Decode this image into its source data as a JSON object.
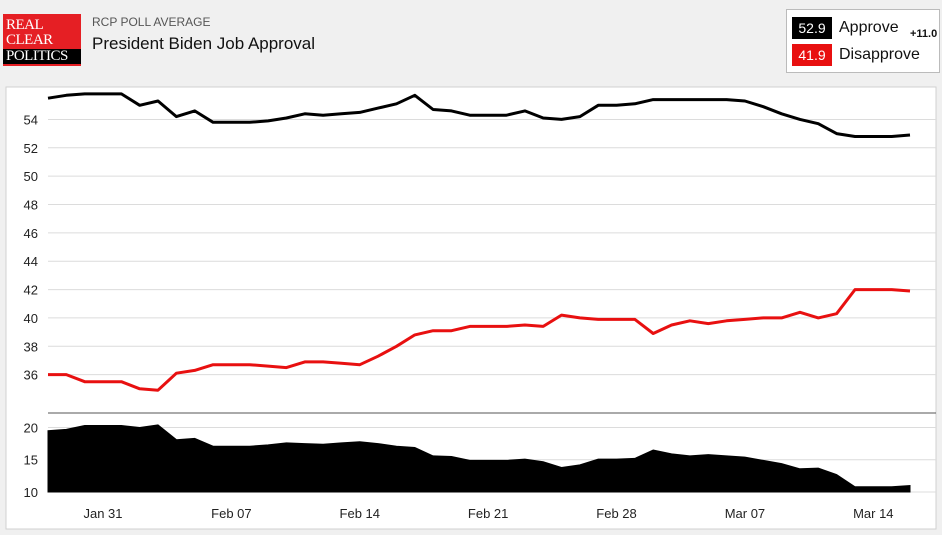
{
  "header": {
    "logo": {
      "line1": "REAL",
      "line2": "CLEAR",
      "line3": "POLITICS"
    },
    "kicker": "RCP POLL AVERAGE",
    "title": "President Biden Job Approval"
  },
  "legend": {
    "approve": {
      "value": "52.9",
      "label": "Approve",
      "color": "#000000"
    },
    "disapprove": {
      "value": "41.9",
      "label": "Disapprove",
      "color": "#e81010"
    },
    "spread": "+11.0"
  },
  "chart_data": [
    {
      "type": "line",
      "ylim": [
        34,
        56.5
      ],
      "yticks": [
        36,
        38,
        40,
        42,
        44,
        46,
        48,
        50,
        52,
        54
      ],
      "grid": true,
      "series": [
        {
          "name": "Approve",
          "color": "#000000",
          "values": [
            55.5,
            55.7,
            55.8,
            55.8,
            55.8,
            55.0,
            55.3,
            54.2,
            54.6,
            53.8,
            53.8,
            53.8,
            53.9,
            54.1,
            54.4,
            54.3,
            54.4,
            54.5,
            54.8,
            55.1,
            55.7,
            54.7,
            54.6,
            54.3,
            54.3,
            54.3,
            54.6,
            54.1,
            54.0,
            54.2,
            55.0,
            55.0,
            55.1,
            55.4,
            55.4,
            55.4,
            55.4,
            55.4,
            55.3,
            54.9,
            54.4,
            54.0,
            53.7,
            53.0,
            52.8,
            52.8,
            52.8,
            52.9
          ]
        },
        {
          "name": "Disapprove",
          "color": "#e81010",
          "values": [
            36.0,
            36.0,
            35.5,
            35.5,
            35.5,
            35.0,
            34.9,
            36.1,
            36.3,
            36.7,
            36.7,
            36.7,
            36.6,
            36.5,
            36.9,
            36.9,
            36.8,
            36.7,
            37.3,
            38.0,
            38.8,
            39.1,
            39.1,
            39.4,
            39.4,
            39.4,
            39.5,
            39.4,
            40.2,
            40.0,
            39.9,
            39.9,
            39.9,
            38.9,
            39.5,
            39.8,
            39.6,
            39.8,
            39.9,
            40.0,
            40.0,
            40.4,
            40.0,
            40.3,
            42.0,
            42.0,
            42.0,
            41.9
          ]
        }
      ]
    },
    {
      "type": "area",
      "ylim": [
        10,
        21
      ],
      "yticks": [
        10,
        15,
        20
      ],
      "grid": true,
      "series": [
        {
          "name": "Spread",
          "color": "#000000",
          "values": [
            19.5,
            19.7,
            20.3,
            20.3,
            20.3,
            20.0,
            20.4,
            18.1,
            18.3,
            17.1,
            17.1,
            17.1,
            17.3,
            17.6,
            17.5,
            17.4,
            17.6,
            17.8,
            17.5,
            17.1,
            16.9,
            15.6,
            15.5,
            14.9,
            14.9,
            14.9,
            15.1,
            14.7,
            13.8,
            14.2,
            15.1,
            15.1,
            15.2,
            16.5,
            15.9,
            15.6,
            15.8,
            15.6,
            15.4,
            14.9,
            14.4,
            13.6,
            13.7,
            12.7,
            10.8,
            10.8,
            10.8,
            11.0
          ]
        }
      ]
    }
  ],
  "x_axis": {
    "labels": [
      {
        "text": "Jan 31",
        "index": 3
      },
      {
        "text": "Feb 07",
        "index": 10
      },
      {
        "text": "Feb 14",
        "index": 17
      },
      {
        "text": "Feb 21",
        "index": 24
      },
      {
        "text": "Feb 28",
        "index": 31
      },
      {
        "text": "Mar 07",
        "index": 38
      },
      {
        "text": "Mar 14",
        "index": 45
      }
    ]
  }
}
